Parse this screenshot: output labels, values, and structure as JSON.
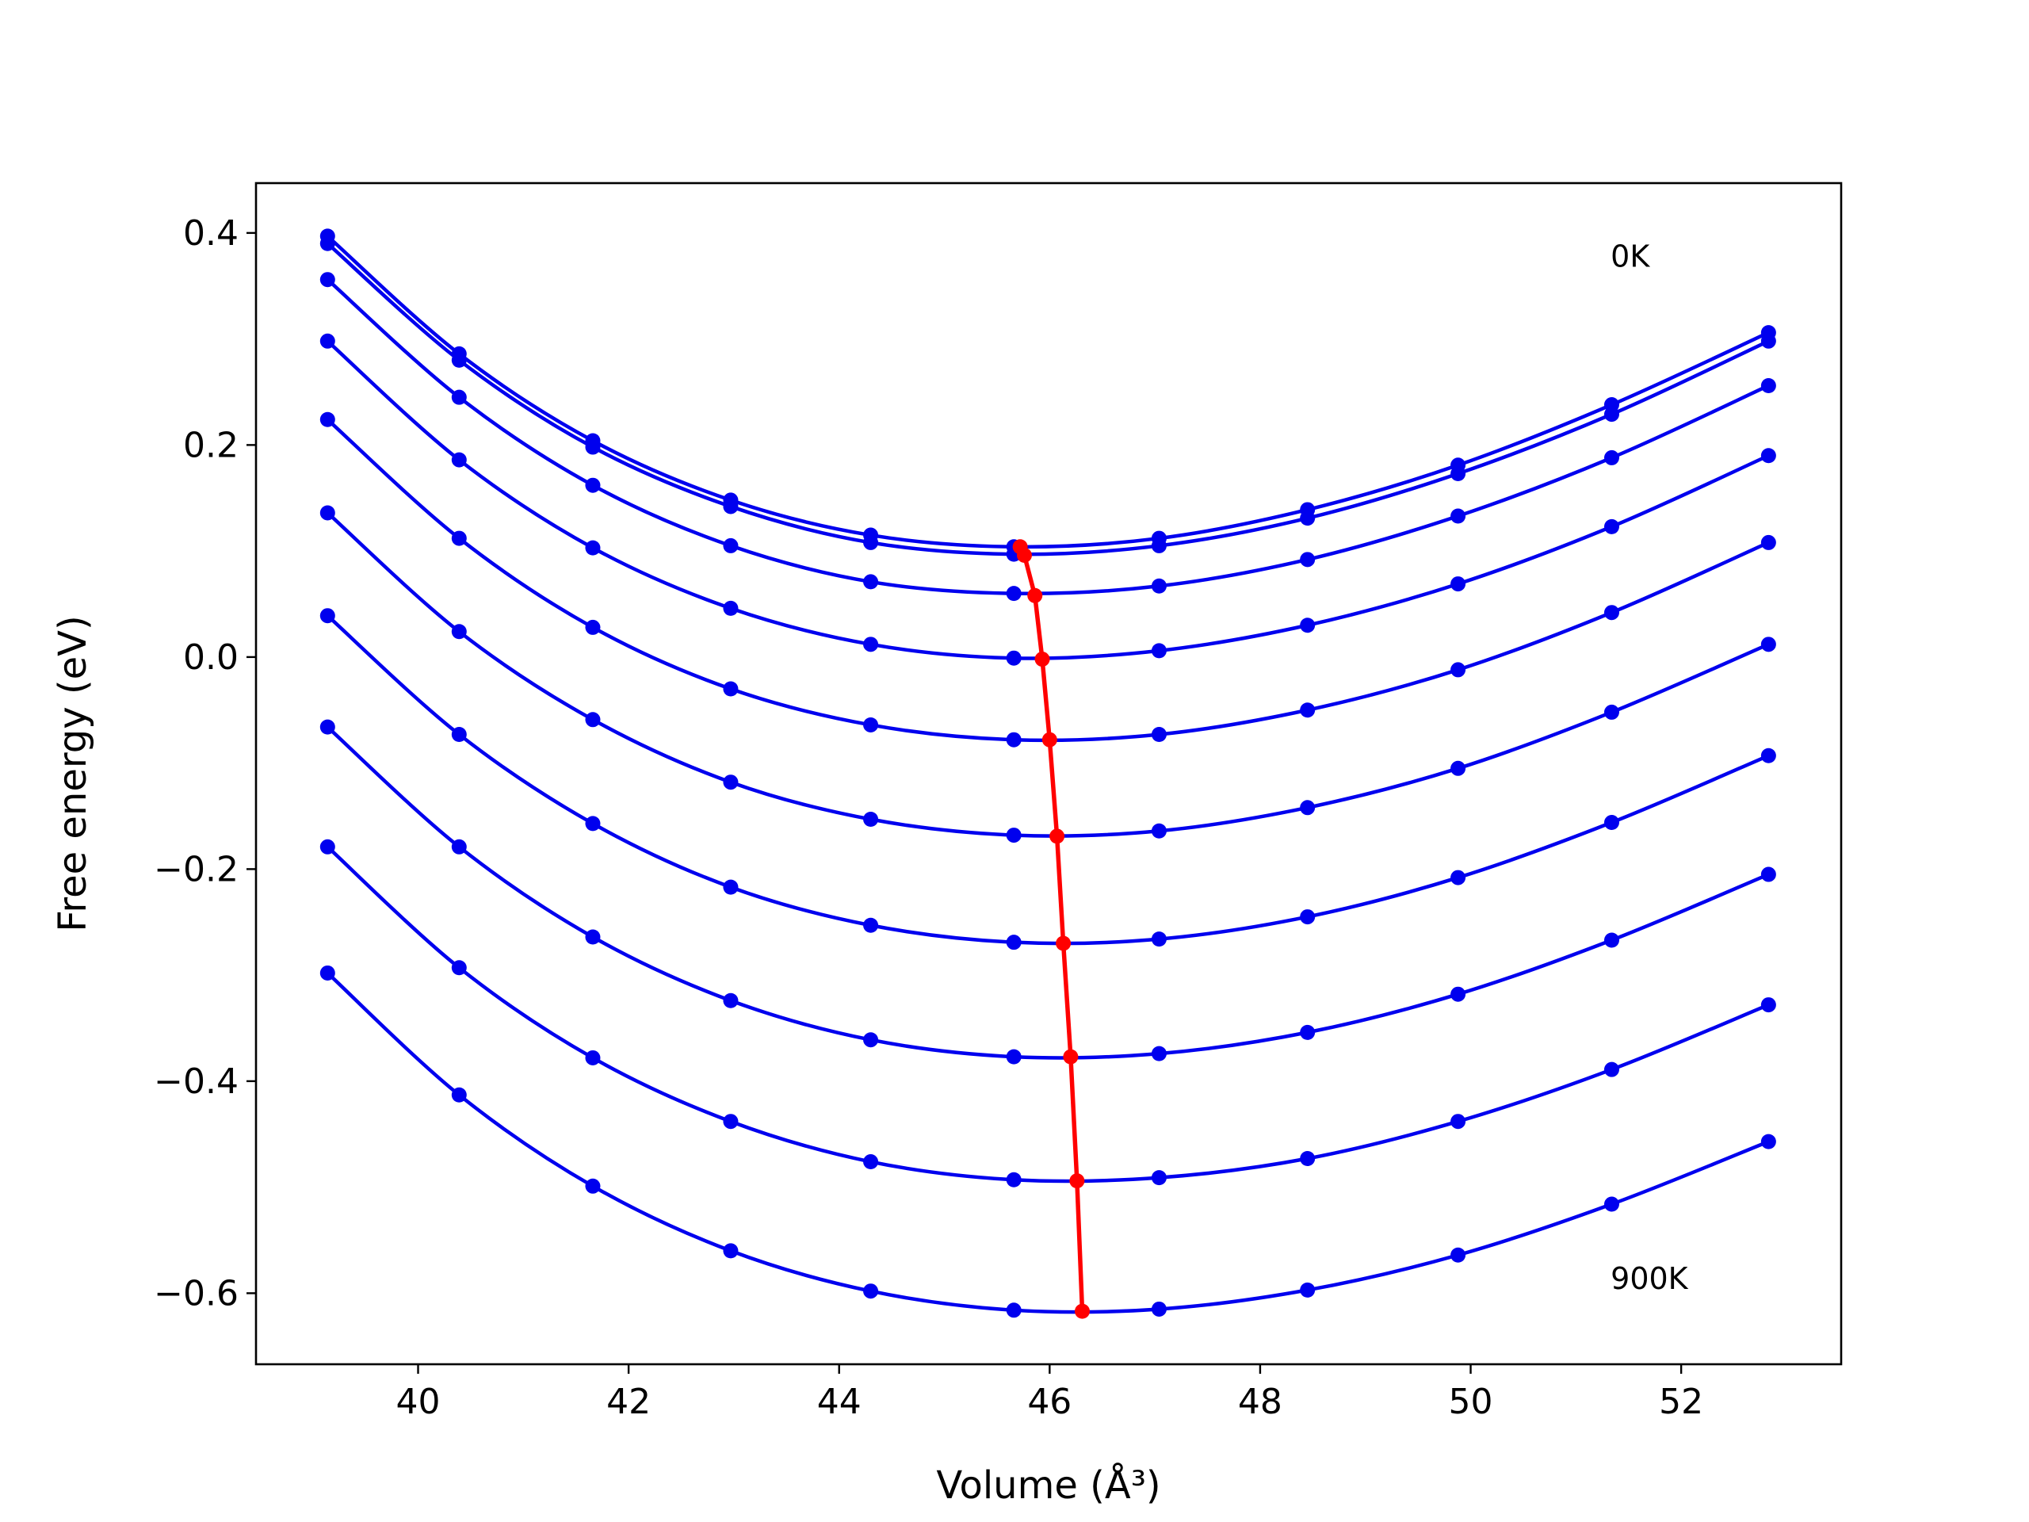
{
  "chart_data": {
    "type": "line",
    "title": "",
    "xlabel": "Volume (Å³)",
    "ylabel": "Free energy (eV)",
    "xlim": [
      38.46,
      53.52
    ],
    "ylim": [
      -0.667,
      0.447
    ],
    "xticks": [
      40,
      42,
      44,
      46,
      48,
      50,
      52
    ],
    "yticks": [
      0.4,
      0.2,
      0.0,
      -0.2,
      -0.4,
      -0.6
    ],
    "xtick_labels": [
      "40",
      "42",
      "44",
      "46",
      "48",
      "50",
      "52"
    ],
    "ytick_labels": [
      "0.4",
      "0.2",
      "0.0",
      "−0.2",
      "−0.4",
      "−0.6"
    ],
    "grid": false,
    "x": [
      39.14,
      40.39,
      41.66,
      42.97,
      44.3,
      45.66,
      47.04,
      48.45,
      49.88,
      51.34,
      52.83
    ],
    "series": [
      {
        "color": "#0000ee",
        "values": [
          0.397,
          0.286,
          0.204,
          0.148,
          0.115,
          0.104,
          0.112,
          0.139,
          0.181,
          0.238,
          0.306
        ]
      },
      {
        "color": "#0000ee",
        "values": [
          0.39,
          0.28,
          0.198,
          0.142,
          0.108,
          0.097,
          0.105,
          0.131,
          0.173,
          0.229,
          0.298
        ]
      },
      {
        "color": "#0000ee",
        "values": [
          0.356,
          0.245,
          0.162,
          0.105,
          0.071,
          0.06,
          0.067,
          0.092,
          0.133,
          0.188,
          0.256
        ]
      },
      {
        "color": "#0000ee",
        "values": [
          0.298,
          0.186,
          0.103,
          0.046,
          0.012,
          -0.001,
          0.006,
          0.03,
          0.069,
          0.123,
          0.19
        ]
      },
      {
        "color": "#0000ee",
        "values": [
          0.224,
          0.112,
          0.028,
          -0.03,
          -0.064,
          -0.078,
          -0.073,
          -0.05,
          -0.012,
          0.042,
          0.108
        ]
      },
      {
        "color": "#0000ee",
        "values": [
          0.136,
          0.024,
          -0.059,
          -0.118,
          -0.153,
          -0.168,
          -0.164,
          -0.142,
          -0.105,
          -0.052,
          0.012
        ]
      },
      {
        "color": "#0000ee",
        "values": [
          0.039,
          -0.073,
          -0.157,
          -0.217,
          -0.253,
          -0.269,
          -0.266,
          -0.245,
          -0.208,
          -0.156,
          -0.093
        ]
      },
      {
        "color": "#0000ee",
        "values": [
          -0.066,
          -0.179,
          -0.264,
          -0.324,
          -0.361,
          -0.377,
          -0.374,
          -0.354,
          -0.318,
          -0.267,
          -0.205
        ]
      },
      {
        "color": "#0000ee",
        "values": [
          -0.179,
          -0.293,
          -0.378,
          -0.438,
          -0.476,
          -0.493,
          -0.491,
          -0.473,
          -0.438,
          -0.389,
          -0.328
        ]
      },
      {
        "color": "#0000ee",
        "values": [
          -0.298,
          -0.413,
          -0.499,
          -0.56,
          -0.598,
          -0.616,
          -0.615,
          -0.597,
          -0.564,
          -0.516,
          -0.457
        ]
      }
    ],
    "minima": {
      "color": "#ff0000",
      "x": [
        45.72,
        45.76,
        45.86,
        45.93,
        46.0,
        46.07,
        46.13,
        46.2,
        46.26,
        46.31
      ],
      "y": [
        0.104,
        0.096,
        0.058,
        -0.002,
        -0.078,
        -0.169,
        -0.27,
        -0.377,
        -0.494,
        -0.617
      ]
    },
    "annotations": [
      {
        "text": "0K",
        "x": 51.33,
        "y": 0.368
      },
      {
        "text": "900K",
        "x": 51.33,
        "y": -0.596
      }
    ]
  }
}
